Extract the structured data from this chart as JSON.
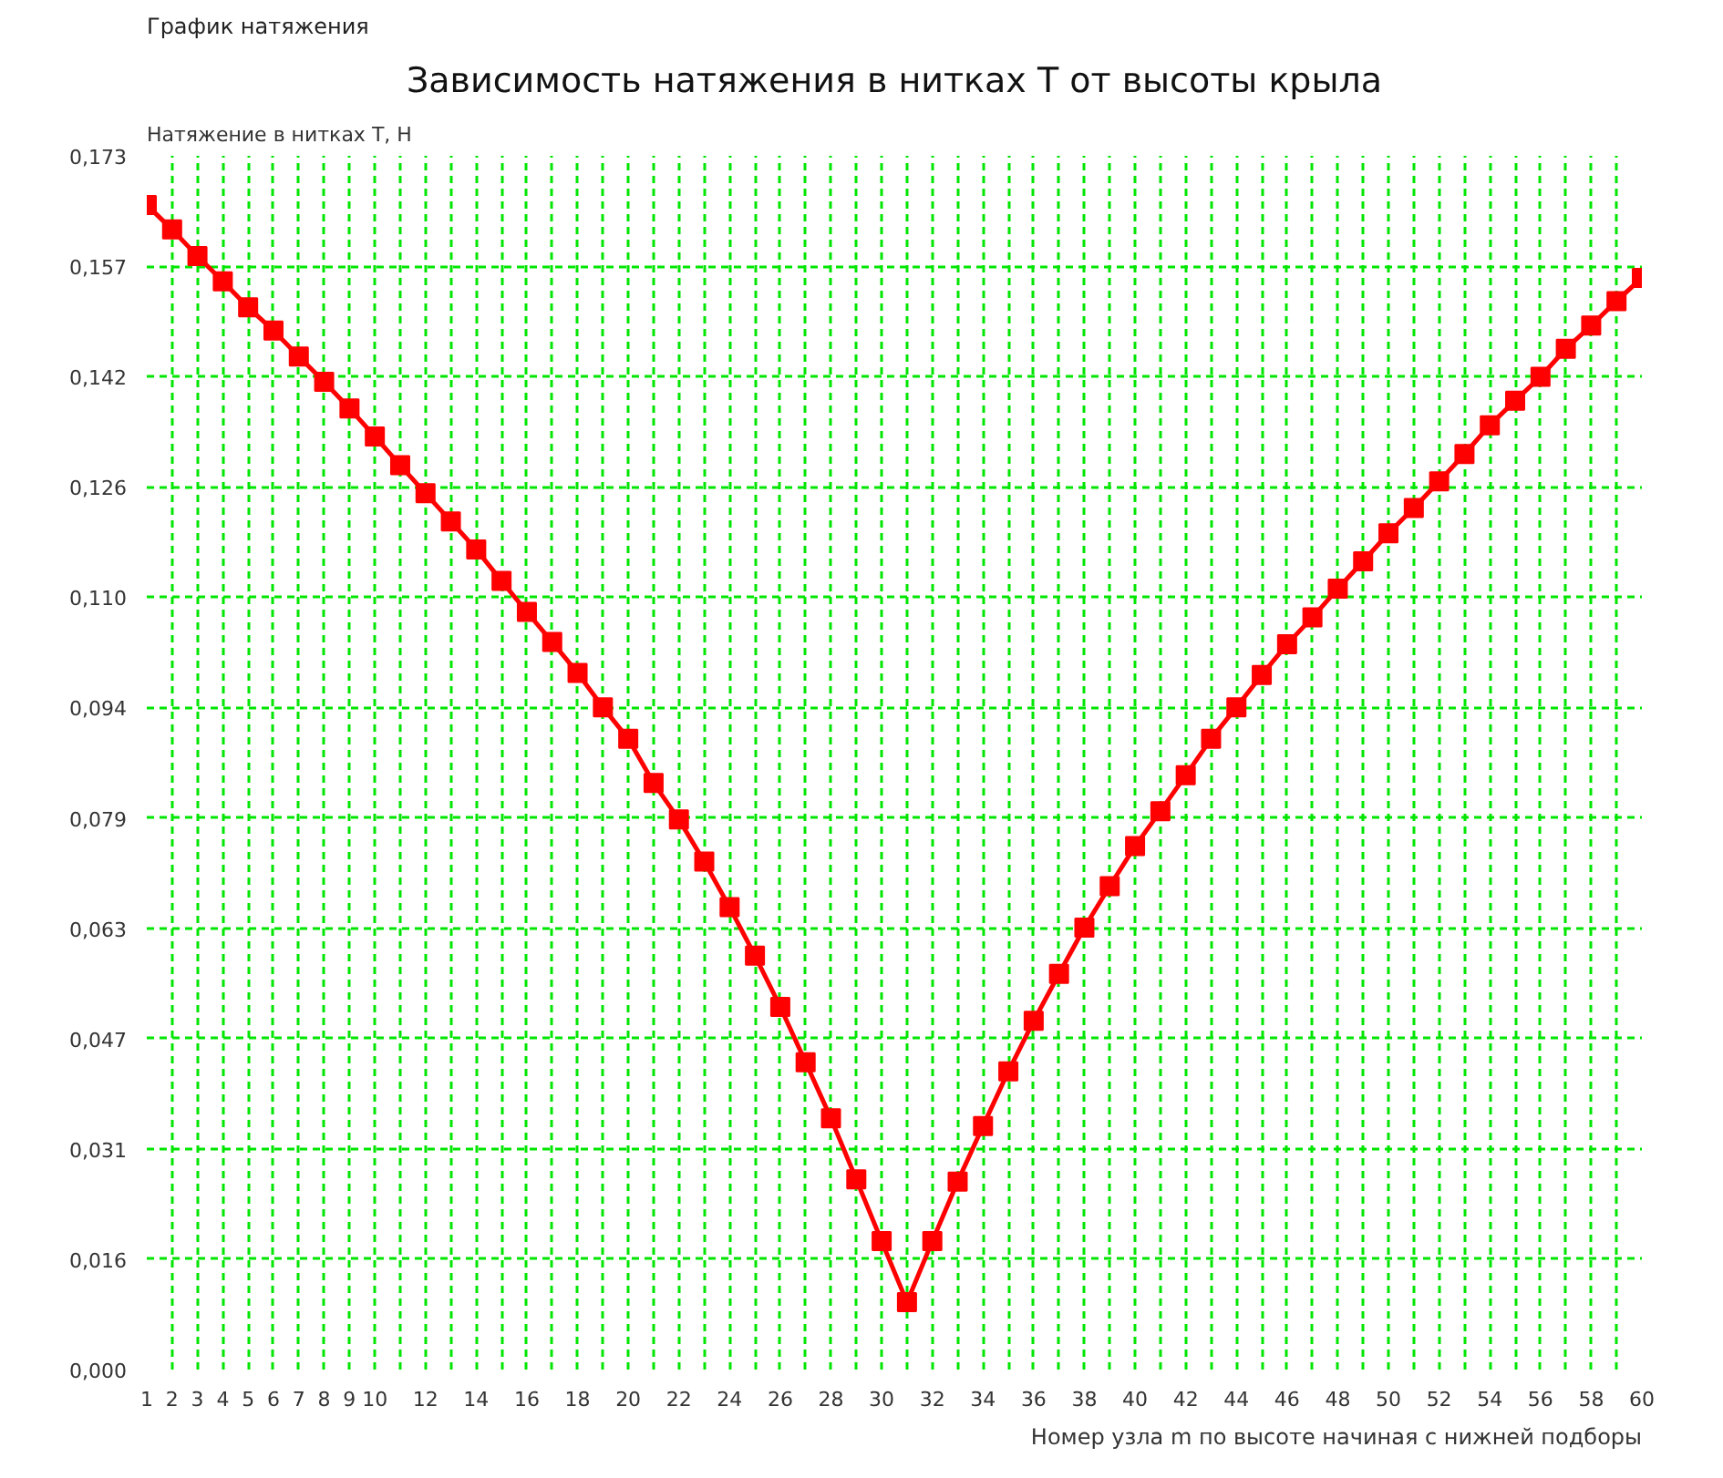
{
  "chart_data": {
    "type": "line",
    "title": "Зависимость натяжения в нитках T от высоты крыла",
    "ylabel": "Натяжение в нитках T, Н",
    "xlabel": "Номер узла m по высоте начиная с нижней подборы",
    "annotations": [
      "График натяжения"
    ],
    "x": [
      1,
      2,
      3,
      4,
      5,
      6,
      7,
      8,
      9,
      10,
      11,
      12,
      13,
      14,
      15,
      16,
      17,
      18,
      19,
      20,
      21,
      22,
      23,
      24,
      25,
      26,
      27,
      28,
      29,
      30,
      31,
      32,
      33,
      34,
      35,
      36,
      37,
      38,
      39,
      40,
      41,
      42,
      43,
      44,
      45,
      46,
      47,
      48,
      49,
      50,
      51,
      52,
      53,
      54,
      55,
      56,
      57,
      58,
      59,
      60
    ],
    "series": [
      {
        "color": "#ff0000",
        "values": [
          0.166,
          0.1625,
          0.1587,
          0.1551,
          0.1514,
          0.1481,
          0.1444,
          0.1408,
          0.137,
          0.133,
          0.1289,
          0.1249,
          0.1209,
          0.1169,
          0.1124,
          0.108,
          0.1037,
          0.0993,
          0.0944,
          0.0899,
          0.0836,
          0.0784,
          0.0724,
          0.0659,
          0.059,
          0.0517,
          0.0438,
          0.0358,
          0.0271,
          0.0183,
          0.0096,
          0.0183,
          0.0268,
          0.0347,
          0.0425,
          0.0497,
          0.0564,
          0.063,
          0.0689,
          0.0746,
          0.0796,
          0.0847,
          0.0899,
          0.0944,
          0.099,
          0.1034,
          0.1072,
          0.1113,
          0.1152,
          0.1192,
          0.1228,
          0.1266,
          0.1305,
          0.1346,
          0.1381,
          0.1415,
          0.1455,
          0.1488,
          0.1523,
          0.1556
        ]
      }
    ],
    "xlim": [
      1,
      60
    ],
    "ylim": [
      0,
      0.173
    ],
    "xticks": [
      1,
      2,
      3,
      4,
      5,
      6,
      7,
      8,
      9,
      10,
      {
        "value": 11,
        "label": null
      },
      12,
      {
        "value": 13,
        "label": null
      },
      14,
      {
        "value": 15,
        "label": null
      },
      16,
      {
        "value": 17,
        "label": null
      },
      18,
      {
        "value": 19,
        "label": null
      },
      20,
      {
        "value": 21,
        "label": null
      },
      22,
      {
        "value": 23,
        "label": null
      },
      24,
      {
        "value": 25,
        "label": null
      },
      26,
      {
        "value": 27,
        "label": null
      },
      28,
      {
        "value": 29,
        "label": null
      },
      30,
      {
        "value": 31,
        "label": null
      },
      32,
      {
        "value": 33,
        "label": null
      },
      34,
      {
        "value": 35,
        "label": null
      },
      36,
      {
        "value": 37,
        "label": null
      },
      38,
      {
        "value": 39,
        "label": null
      },
      40,
      {
        "value": 41,
        "label": null
      },
      42,
      {
        "value": 43,
        "label": null
      },
      44,
      {
        "value": 45,
        "label": null
      },
      46,
      {
        "value": 47,
        "label": null
      },
      48,
      {
        "value": 49,
        "label": null
      },
      50,
      {
        "value": 51,
        "label": null
      },
      52,
      {
        "value": 53,
        "label": null
      },
      54,
      {
        "value": 55,
        "label": null
      },
      56,
      {
        "value": 57,
        "label": null
      },
      58,
      {
        "value": 59,
        "label": null
      },
      60
    ],
    "yticks": [
      {
        "value": 0,
        "label": "0,000"
      },
      {
        "value": 0.01573,
        "label": "0,016"
      },
      {
        "value": 0.03145,
        "label": "0,031"
      },
      {
        "value": 0.04718,
        "label": "0,047"
      },
      {
        "value": 0.06291,
        "label": "0,063"
      },
      {
        "value": 0.07864,
        "label": "0,079"
      },
      {
        "value": 0.09436,
        "label": "0,094"
      },
      {
        "value": 0.11009,
        "label": "0,110"
      },
      {
        "value": 0.12582,
        "label": "0,126"
      },
      {
        "value": 0.14155,
        "label": "0,142"
      },
      {
        "value": 0.15727,
        "label": "0,157"
      },
      {
        "value": 0.173,
        "label": "0,173"
      }
    ],
    "grid": true,
    "marker": "square",
    "line_style": "solid"
  }
}
